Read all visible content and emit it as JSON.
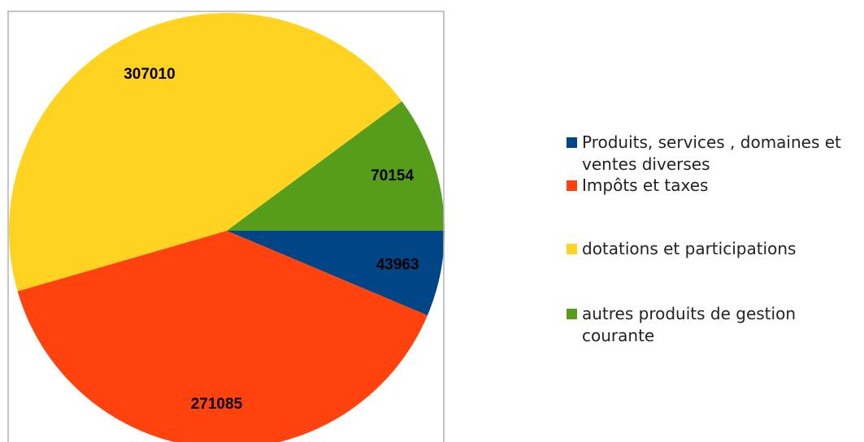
{
  "chart_data": {
    "type": "pie",
    "categories": [
      "Produits, services , domaines et ventes diverses",
      "Impôts et taxes",
      "dotations et participations",
      "autres produits de gestion courante"
    ],
    "values": [
      43963,
      271085,
      307010,
      70154
    ],
    "colors": [
      "#004586",
      "#ff420e",
      "#ffd320",
      "#579d1c"
    ],
    "legend": "right"
  }
}
